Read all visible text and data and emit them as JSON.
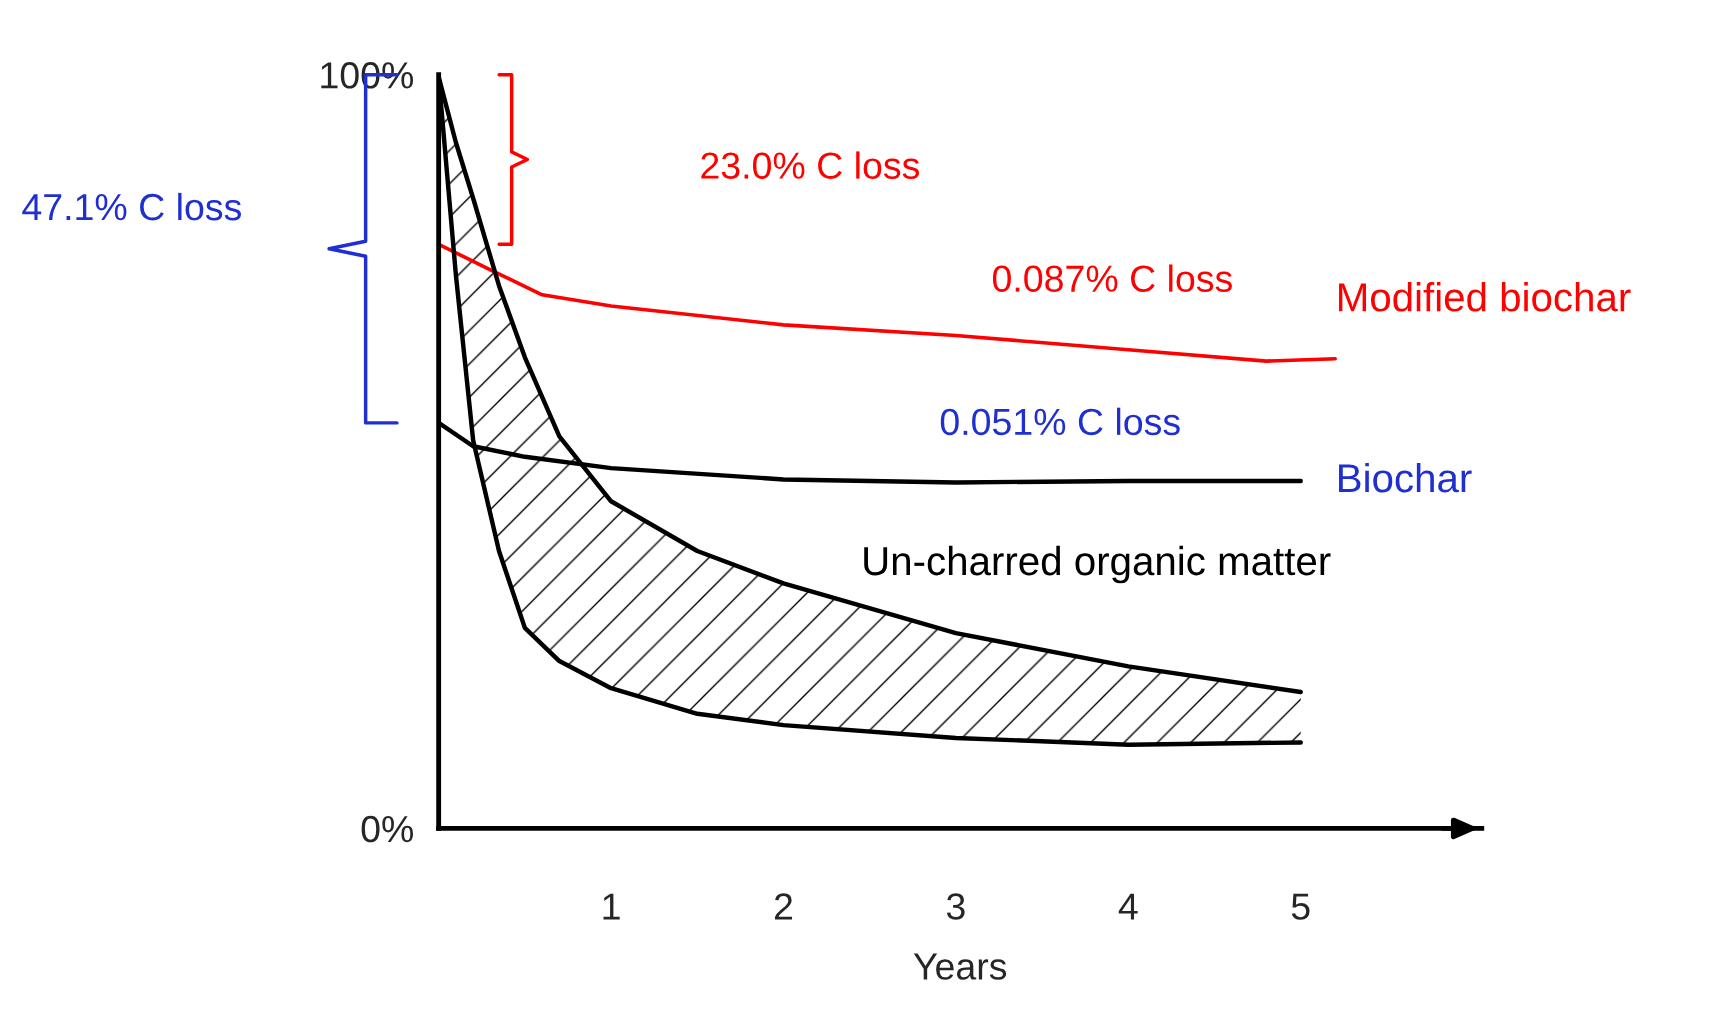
{
  "chart_data": {
    "type": "line",
    "xlabel": "Years",
    "xlim": [
      0,
      6.05
    ],
    "ylim": [
      0,
      100
    ],
    "xticks": [
      1,
      2,
      3,
      4,
      5
    ],
    "yticks": [
      {
        "value": 0,
        "label": "0%"
      },
      {
        "value": 100,
        "label": "100%"
      }
    ],
    "grid": false,
    "legend": false,
    "marker": "none",
    "line_style": "solid",
    "series": [
      {
        "name": "Modified biochar",
        "color": "#ff0000",
        "x": [
          0,
          0.3,
          0.6,
          1,
          2,
          3,
          4,
          4.8,
          5.2
        ],
        "values": [
          77.5,
          74.1,
          70.8,
          69.3,
          66.8,
          65.4,
          63.5,
          62.0,
          62.3
        ]
      },
      {
        "name": "Biochar",
        "color": "#000000",
        "x": [
          0,
          0.2,
          0.5,
          1,
          2,
          3,
          4,
          5
        ],
        "values": [
          53.8,
          50.7,
          49.3,
          47.8,
          46.3,
          45.9,
          46.1,
          46.1
        ]
      },
      {
        "name": "Un-charred organic matter",
        "color": "#000000",
        "x": [
          0,
          0.1,
          0.2,
          0.35,
          0.5,
          0.7,
          1,
          1.5,
          2,
          3,
          4,
          5
        ],
        "values": [
          99.7,
          91,
          83.6,
          72,
          62.5,
          52,
          43.4,
          36.8,
          32.5,
          25.9,
          21.5,
          18.1
        ],
        "upper": [
          99.7,
          91,
          83.6,
          72,
          62.5,
          52,
          43.4,
          36.8,
          32.5,
          25.9,
          21.5,
          18.1
        ],
        "lower": [
          99.7,
          73.4,
          51.5,
          36.8,
          26.6,
          22.2,
          18.6,
          15.2,
          13.7,
          12.0,
          11.1,
          11.4
        ]
      },
      {
        "color": "#000000",
        "x": [
          0,
          0.1,
          0.2,
          0.35,
          0.5,
          0.7,
          1,
          1.5,
          2,
          3,
          4,
          5
        ],
        "values": [
          99.7,
          73.4,
          51.5,
          36.8,
          26.6,
          22.2,
          18.6,
          15.2,
          13.7,
          12.0,
          11.1,
          11.4
        ]
      }
    ],
    "annotations": [
      "47.1% C loss",
      "23.0% C loss",
      "0.087% C loss",
      "0.051% C loss"
    ]
  }
}
